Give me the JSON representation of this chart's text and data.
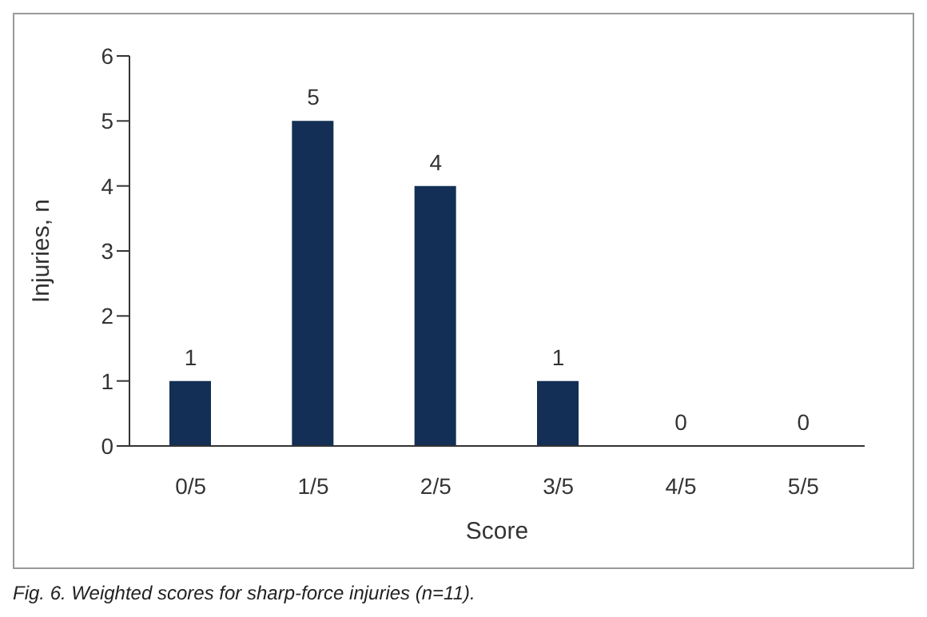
{
  "chart_data": {
    "type": "bar",
    "xlabel": "Score",
    "ylabel": "Injuries, n",
    "categories": [
      "0/5",
      "1/5",
      "2/5",
      "3/5",
      "4/5",
      "5/5"
    ],
    "values": [
      1,
      5,
      4,
      1,
      0,
      0
    ],
    "color": "#132f55",
    "ylim": [
      0,
      6
    ],
    "yticks": [
      0,
      1,
      2,
      3,
      4,
      5,
      6
    ],
    "grid": false,
    "data_labels": true,
    "annotations": [
      "Fig. 6. Weighted scores for sharp-force injuries (n=11)."
    ]
  }
}
